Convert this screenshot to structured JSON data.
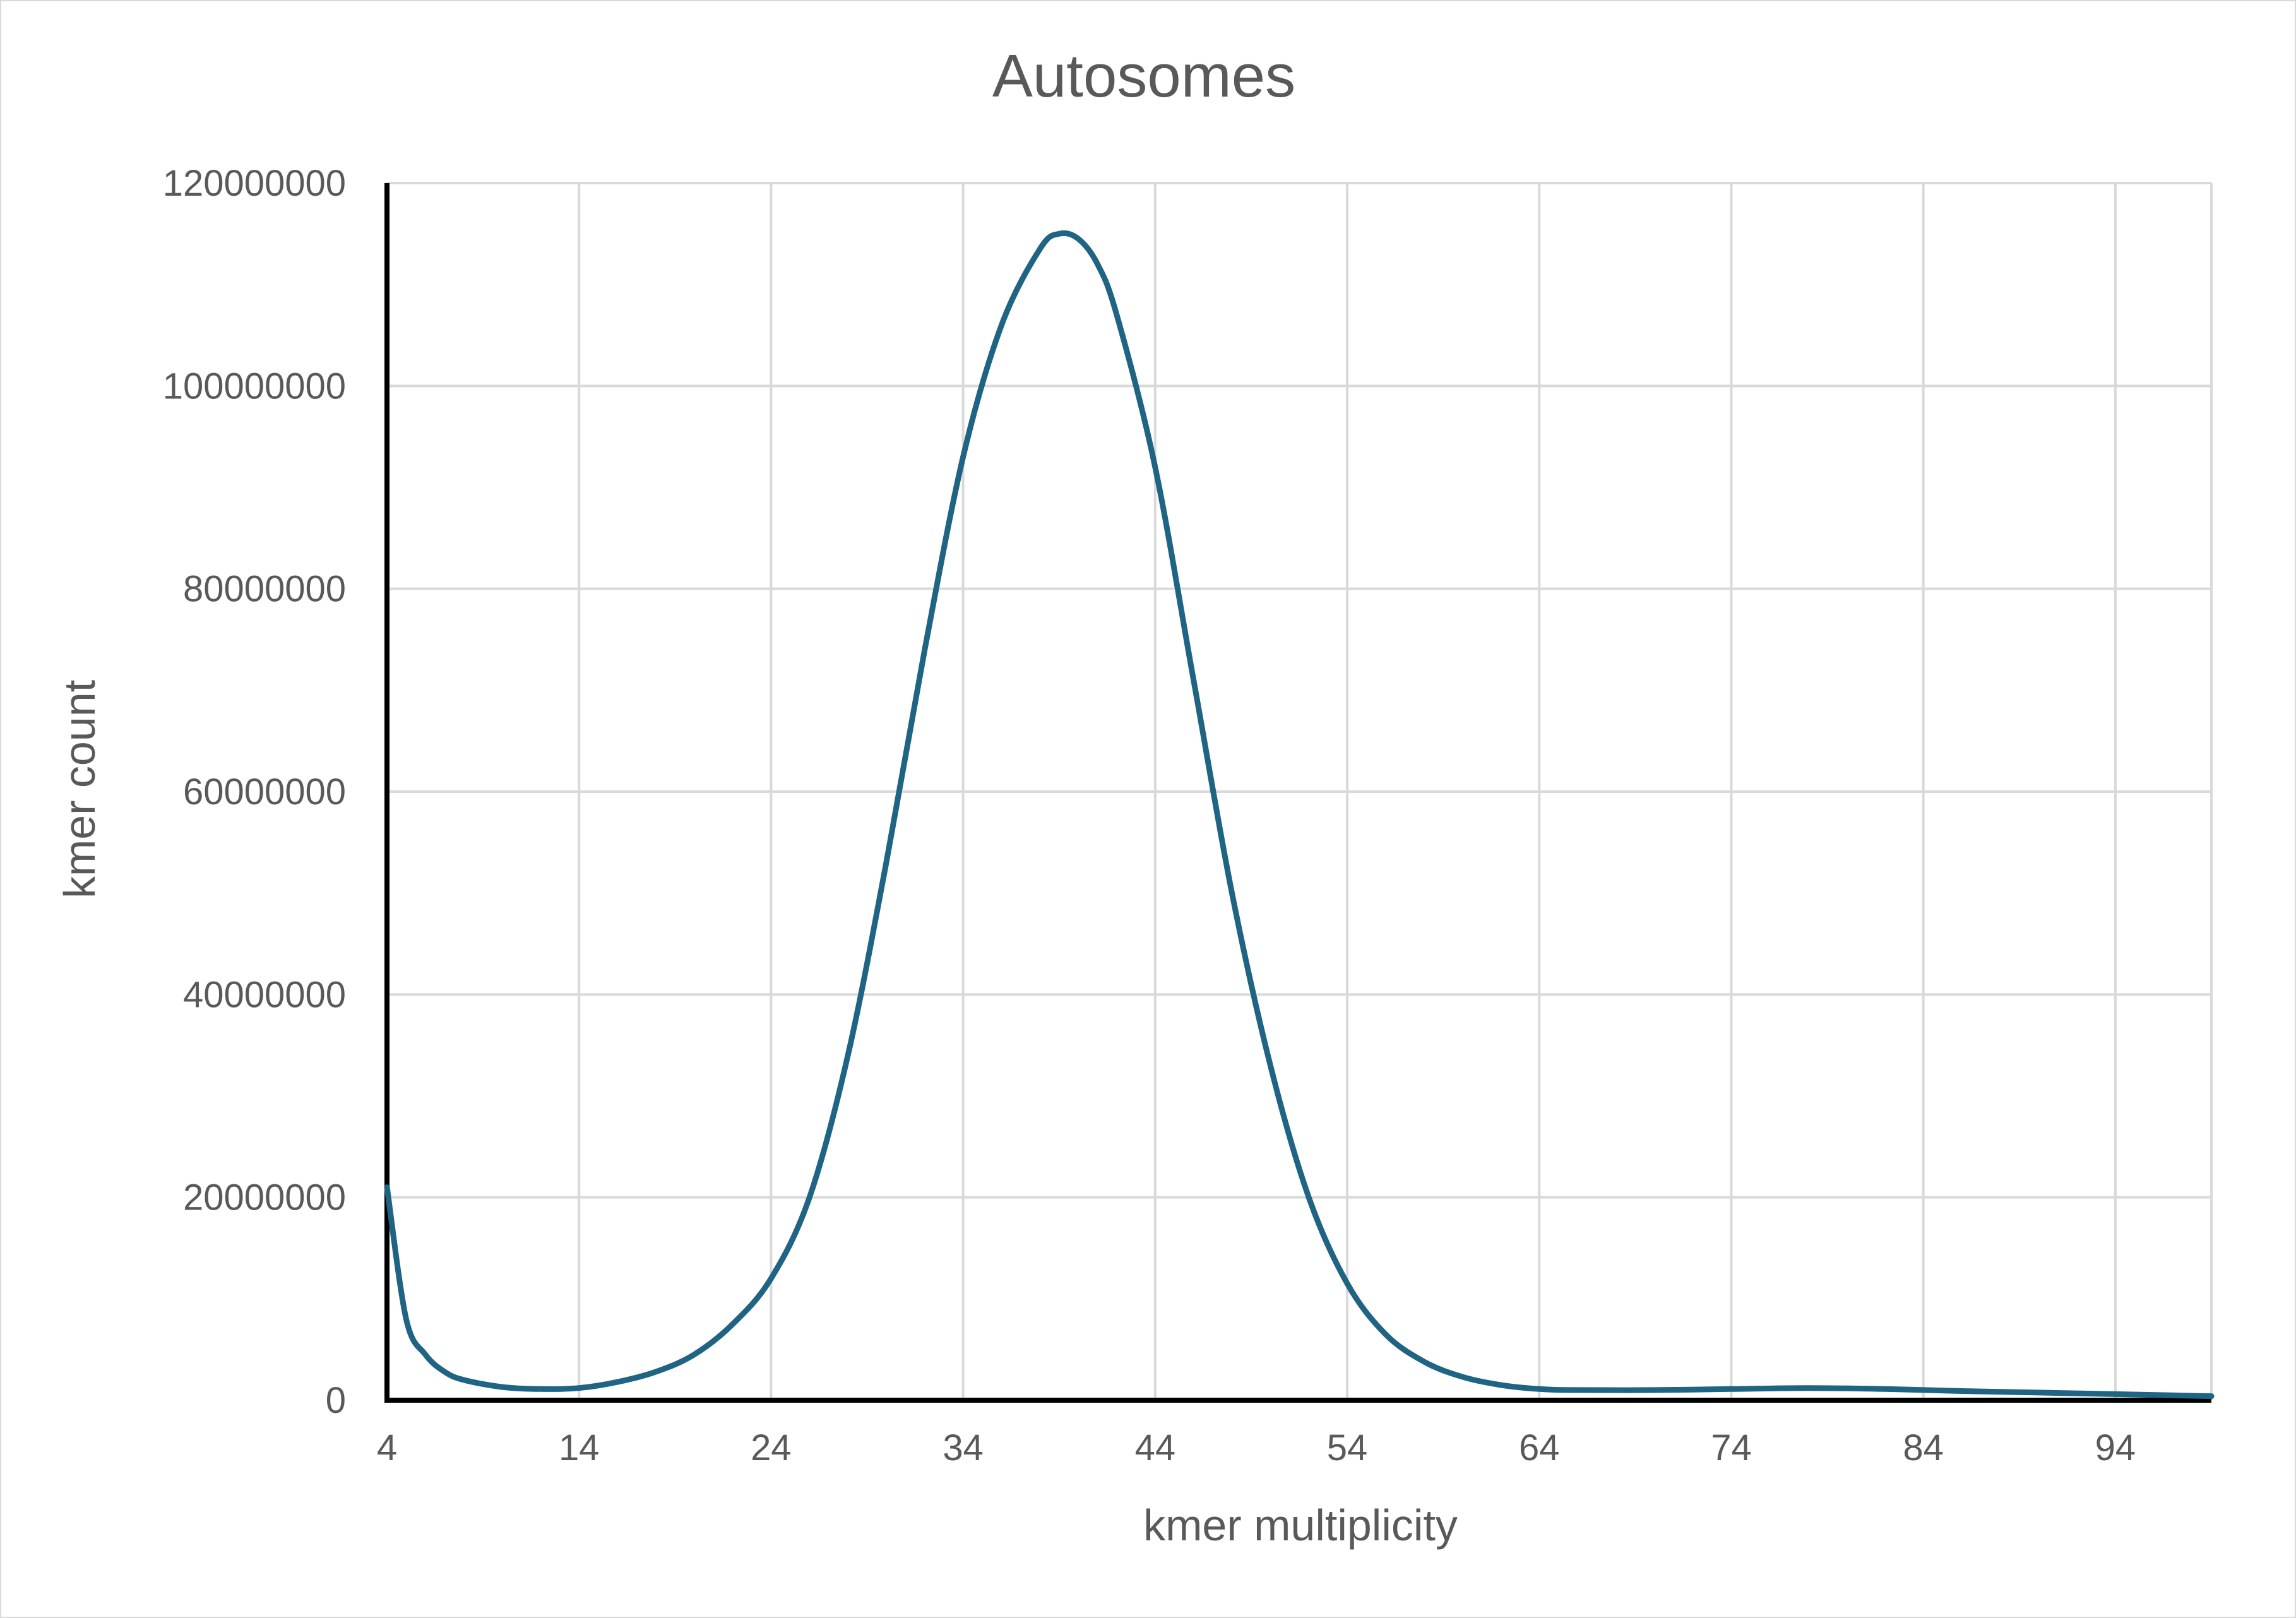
{
  "chart_data": {
    "type": "line",
    "title": "Autosomes",
    "xlabel": "kmer multiplicity",
    "ylabel": "kmer count",
    "xlim": [
      4,
      99
    ],
    "ylim": [
      0,
      120000000
    ],
    "x_ticks": [
      "4",
      "14",
      "24",
      "34",
      "44",
      "54",
      "64",
      "74",
      "84",
      "94"
    ],
    "y_ticks": [
      "0",
      "20000000",
      "40000000",
      "60000000",
      "80000000",
      "100000000",
      "120000000"
    ],
    "grid": true,
    "legend": "none",
    "series_color": "#1f6483",
    "x": [
      4,
      5,
      6,
      7,
      8,
      10,
      12,
      14,
      16,
      18,
      20,
      22,
      24,
      26,
      28,
      30,
      32,
      34,
      36,
      38,
      39,
      40,
      41,
      42,
      44,
      46,
      48,
      50,
      52,
      54,
      56,
      58,
      60,
      62,
      64,
      66,
      70,
      74,
      78,
      82,
      86,
      90,
      94,
      99
    ],
    "y": [
      21000000,
      8000000,
      4500000,
      2800000,
      2000000,
      1300000,
      1100000,
      1200000,
      1800000,
      2800000,
      4500000,
      7500000,
      12000000,
      20000000,
      34000000,
      53000000,
      74000000,
      93000000,
      106000000,
      113500000,
      115000000,
      114500000,
      112000000,
      107000000,
      92000000,
      71000000,
      50000000,
      33000000,
      20000000,
      11500000,
      6500000,
      3800000,
      2300000,
      1500000,
      1100000,
      1000000,
      1000000,
      1100000,
      1200000,
      1100000,
      900000,
      750000,
      600000,
      400000
    ]
  }
}
